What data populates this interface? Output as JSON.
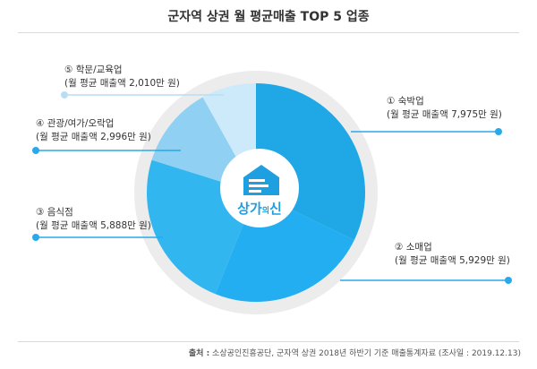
{
  "title": "군자역 상권 월 평균매출 TOP 5 업종",
  "footer": {
    "label": "출처 :",
    "text": "소상공인진흥공단, 군자역 상권 2018년 하반기 기준 매출통계자료 (조사일 : 2019.12.13)"
  },
  "logo": {
    "text_main": "상가",
    "text_small": "의",
    "text_end": "신"
  },
  "colors": {
    "slice1": "#1fa7e6",
    "slice2": "#22aef0",
    "slice3": "#31b6ef",
    "slice4": "#8fd0f3",
    "slice5": "#cdeafb",
    "ring": "#ececec",
    "leader": "#29a9e8"
  },
  "chart_data": {
    "type": "pie",
    "title": "군자역 상권 월 평균매출 TOP 5 업종",
    "unit": "만 원",
    "slices": [
      {
        "label": "① 숙박업",
        "detail": "(월 평균 매출액 7,975만 원)",
        "value": 7975
      },
      {
        "label": "② 소매업",
        "detail": "(월 평균 매출액 5,929만 원)",
        "value": 5929
      },
      {
        "label": "③ 음식점",
        "detail": "(월 평균 매출액 5,888만 원)",
        "value": 5888
      },
      {
        "label": "④ 관광/여가/오락업",
        "detail": "(월 평균 매출액 2,996만 원)",
        "value": 2996
      },
      {
        "label": "⑤ 학문/교육업",
        "detail": "(월 평균 매출액 2,010만 원)",
        "value": 2010
      }
    ]
  }
}
